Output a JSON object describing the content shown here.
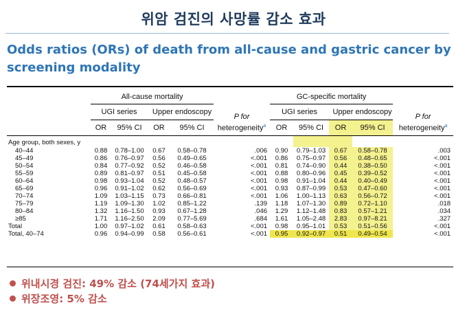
{
  "title": "위암 검진의 사망률 감소 효과",
  "subtitle": "Odds ratios (ORs) of death from all-cause and gastric cancer by screening modality",
  "table": {
    "group_headers": {
      "all_cause": "All-cause mortality",
      "gc_specific": "GC-specific mortality"
    },
    "sub_headers": {
      "ugi": "UGI series",
      "endo": "Upper endoscopy",
      "p_for": "P for",
      "heterogeneity": "heterogeneity",
      "sup": "a"
    },
    "col_headers": {
      "or": "OR",
      "ci": "95% CI"
    },
    "age_group_label": "Age group, both sexes, y",
    "rows": [
      {
        "label": "40–44",
        "ac_ugi_or": "0.88",
        "ac_ugi_ci": "0.78–1.00",
        "ac_endo_or": "0.67",
        "ac_endo_ci": "0.58–0.78",
        "ac_p": ".006",
        "gc_ugi_or": "0.90",
        "gc_ugi_ci": "0.79–1.03",
        "gc_endo_or": "0.67",
        "gc_endo_ci": "0.58–0.78",
        "gc_p": ".003"
      },
      {
        "label": "45–49",
        "ac_ugi_or": "0.86",
        "ac_ugi_ci": "0.76–0.97",
        "ac_endo_or": "0.56",
        "ac_endo_ci": "0.49–0.65",
        "ac_p": "<.001",
        "gc_ugi_or": "0.86",
        "gc_ugi_ci": "0.75–0.97",
        "gc_endo_or": "0.56",
        "gc_endo_ci": "0.48–0.65",
        "gc_p": "<.001"
      },
      {
        "label": "50–54",
        "ac_ugi_or": "0.84",
        "ac_ugi_ci": "0.77–0.92",
        "ac_endo_or": "0.52",
        "ac_endo_ci": "0.46–0.58",
        "ac_p": "<.001",
        "gc_ugi_or": "0.81",
        "gc_ugi_ci": "0.74–0.90",
        "gc_endo_or": "0.44",
        "gc_endo_ci": "0.38–0.50",
        "gc_p": "<.001"
      },
      {
        "label": "55–59",
        "ac_ugi_or": "0.89",
        "ac_ugi_ci": "0.81–0.97",
        "ac_endo_or": "0.51",
        "ac_endo_ci": "0.45–0.58",
        "ac_p": "<.001",
        "gc_ugi_or": "0.88",
        "gc_ugi_ci": "0.80–0.96",
        "gc_endo_or": "0.45",
        "gc_endo_ci": "0.39–0.52",
        "gc_p": "<.001"
      },
      {
        "label": "60–64",
        "ac_ugi_or": "0.98",
        "ac_ugi_ci": "0.93–1.04",
        "ac_endo_or": "0.52",
        "ac_endo_ci": "0.48–0.57",
        "ac_p": "<.001",
        "gc_ugi_or": "0.98",
        "gc_ugi_ci": "0.91–1.04",
        "gc_endo_or": "0.44",
        "gc_endo_ci": "0.40–0.49",
        "gc_p": "<.001"
      },
      {
        "label": "65–69",
        "ac_ugi_or": "0.96",
        "ac_ugi_ci": "0.91–1.02",
        "ac_endo_or": "0.62",
        "ac_endo_ci": "0.56–0.69",
        "ac_p": "<.001",
        "gc_ugi_or": "0.93",
        "gc_ugi_ci": "0.87–0.99",
        "gc_endo_or": "0.53",
        "gc_endo_ci": "0.47–0.60",
        "gc_p": "<.001"
      },
      {
        "label": "70–74",
        "ac_ugi_or": "1.09",
        "ac_ugi_ci": "1.03–1.15",
        "ac_endo_or": "0.73",
        "ac_endo_ci": "0.66–0.81",
        "ac_p": "<.001",
        "gc_ugi_or": "1.06",
        "gc_ugi_ci": "1.00–1.13",
        "gc_endo_or": "0.63",
        "gc_endo_ci": "0.56–0.72",
        "gc_p": "<.001"
      },
      {
        "label": "75–79",
        "ac_ugi_or": "1.19",
        "ac_ugi_ci": "1.09–1.30",
        "ac_endo_or": "1.02",
        "ac_endo_ci": "0.85–1.22",
        "ac_p": ".139",
        "gc_ugi_or": "1.18",
        "gc_ugi_ci": "1.07–1.30",
        "gc_endo_or": "0.89",
        "gc_endo_ci": "0.72–1.10",
        "gc_p": ".018"
      },
      {
        "label": "80–84",
        "ac_ugi_or": "1.32",
        "ac_ugi_ci": "1.16–1.50",
        "ac_endo_or": "0.93",
        "ac_endo_ci": "0.67–1.28",
        "ac_p": ".046",
        "gc_ugi_or": "1.29",
        "gc_ugi_ci": "1.12–1.48",
        "gc_endo_or": "0.83",
        "gc_endo_ci": "0.57–1.21",
        "gc_p": ".034"
      },
      {
        "label": "≥85",
        "ac_ugi_or": "1.71",
        "ac_ugi_ci": "1.16–2.50",
        "ac_endo_or": "2.09",
        "ac_endo_ci": "0.77–5.69",
        "ac_p": ".684",
        "gc_ugi_or": "1.61",
        "gc_ugi_ci": "1.05–2.48",
        "gc_endo_or": "2.83",
        "gc_endo_ci": "0.97–8.21",
        "gc_p": ".327"
      },
      {
        "label": "Total",
        "ac_ugi_or": "1.00",
        "ac_ugi_ci": "0.97–1.02",
        "ac_endo_or": "0.61",
        "ac_endo_ci": "0.58–0.63",
        "ac_p": "<.001",
        "gc_ugi_or": "0.98",
        "gc_ugi_ci": "0.95–1.01",
        "gc_endo_or": "0.53",
        "gc_endo_ci": "0.51–0.56",
        "gc_p": "<.001"
      },
      {
        "label": "Total, 40–74",
        "ac_ugi_or": "0.96",
        "ac_ugi_ci": "0.94–0.99",
        "ac_endo_or": "0.58",
        "ac_endo_ci": "0.56–0.61",
        "ac_p": "<.001",
        "gc_ugi_or": "0.95",
        "gc_ugi_ci": "0.92–0.97",
        "gc_endo_or": "0.51",
        "gc_endo_ci": "0.49–0.54",
        "gc_p": "<.001"
      }
    ]
  },
  "bullets": [
    "위내시경 검진: 49% 감소 (74세가지 효과)",
    "위장조영: 5% 감소"
  ],
  "colors": {
    "title": "#1f3b5c",
    "subtitle": "#2e75b6",
    "bullet": "#c0504d",
    "highlight_light": "#f4f18f",
    "highlight_strong": "#efe64d"
  }
}
